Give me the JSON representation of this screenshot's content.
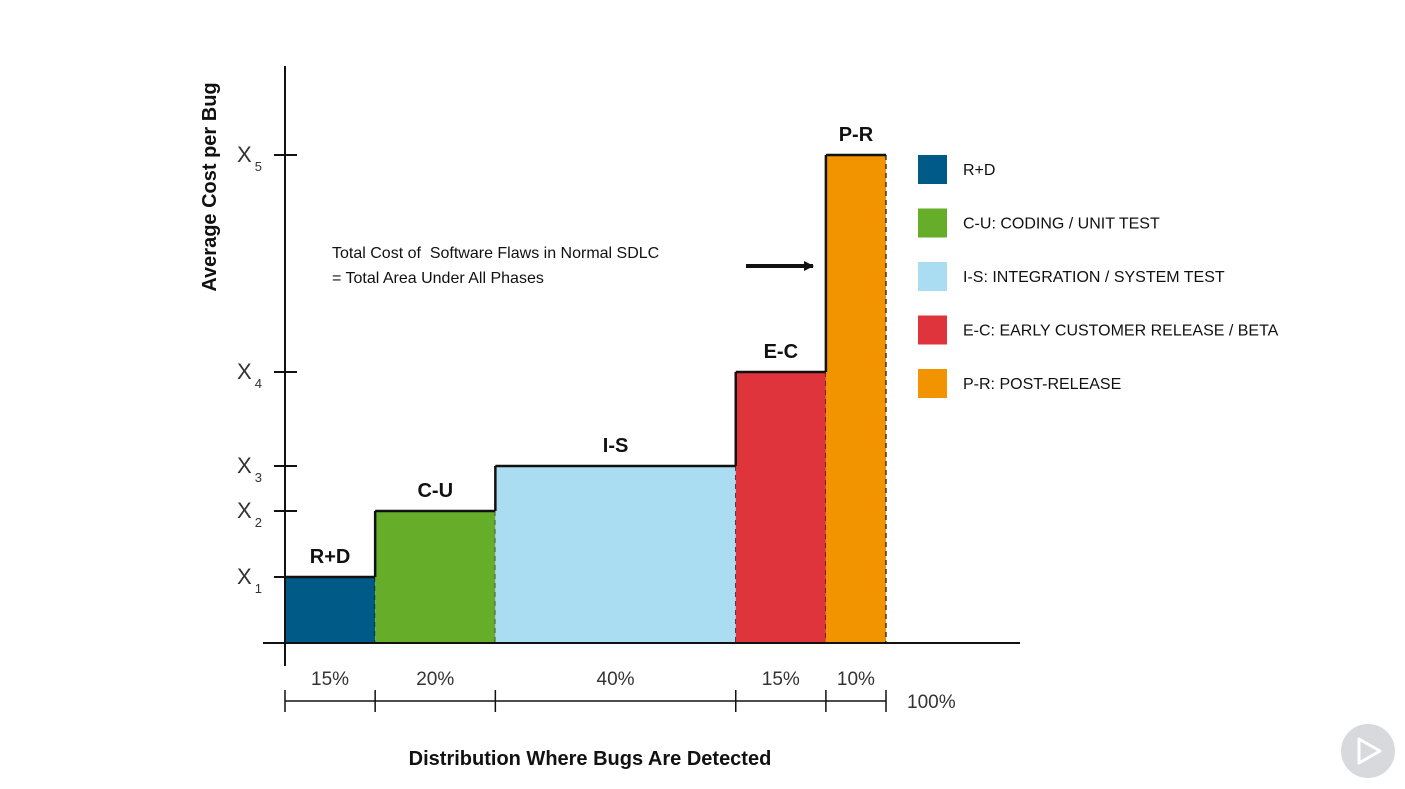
{
  "chart_data": {
    "type": "bar",
    "subtype": "variable-width step chart",
    "xlabel": "Distribution Where Bugs Are Detected",
    "ylabel": "Average Cost per Bug",
    "y_ticks": [
      {
        "base": "X",
        "sub": "1",
        "value": 1
      },
      {
        "base": "X",
        "sub": "2",
        "value": 2
      },
      {
        "base": "X",
        "sub": "3",
        "value": 3
      },
      {
        "base": "X",
        "sub": "4",
        "value": 4
      },
      {
        "base": "X",
        "sub": "5",
        "value": 5
      }
    ],
    "ylim": [
      0,
      6
    ],
    "grid": false,
    "legend_position": "right",
    "series": [
      {
        "label": "R+D",
        "legend": "R+D",
        "share": 15,
        "share_label": "15%",
        "cost_level": 1,
        "color": "#005a87"
      },
      {
        "label": "C-U",
        "legend": "C-U: CODING / UNIT TEST",
        "share": 20,
        "share_label": "20%",
        "cost_level": 2,
        "color": "#66ad2a"
      },
      {
        "label": "I-S",
        "legend": "I-S: INTEGRATION / SYSTEM TEST",
        "share": 40,
        "share_label": "40%",
        "cost_level": 3,
        "color": "#aadcf2"
      },
      {
        "label": "E-C",
        "legend": "E-C: EARLY CUSTOMER RELEASE / BETA",
        "share": 15,
        "share_label": "15%",
        "cost_level": 4,
        "color": "#e0343d"
      },
      {
        "label": "P-R",
        "legend": "P-R: POST-RELEASE",
        "share": 10,
        "share_label": "10%",
        "cost_level": 5,
        "color": "#f29400"
      }
    ],
    "total_label": "100%",
    "annotation": {
      "lines": [
        "Total Cost of  Software Flaws in Normal SDLC",
        "= Total Area Under All Phases"
      ],
      "points_to": "P-R"
    }
  },
  "controls": {
    "play_icon": "play-icon"
  }
}
